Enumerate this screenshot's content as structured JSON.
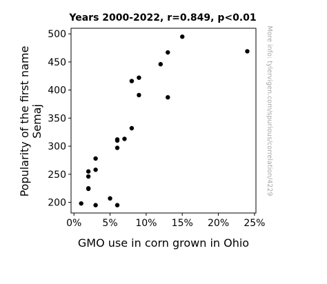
{
  "chart_data": {
    "type": "scatter",
    "title": "Years 2000-2022, r=0.849, p<0.01",
    "xlabel": "GMO use in corn grown in Ohio",
    "ylabel_line1": "Popularity of the first name",
    "ylabel_line2": "Semaj",
    "side_note": "More info: tylervigen.com/spurious/correlation/4229",
    "xlim": [
      -0.004,
      0.252
    ],
    "ylim": [
      181,
      510
    ],
    "x_ticks": [
      0,
      0.05,
      0.1,
      0.15,
      0.2,
      0.25
    ],
    "x_tick_labels": [
      "0%",
      "5%",
      "10%",
      "15%",
      "20%",
      "25%"
    ],
    "y_ticks": [
      200,
      250,
      300,
      350,
      400,
      450,
      500
    ],
    "y_tick_labels": [
      "200",
      "250",
      "300",
      "350",
      "400",
      "450",
      "500"
    ],
    "grid": false,
    "point_color": "#000000",
    "points": [
      {
        "x": 0.01,
        "y": 198
      },
      {
        "x": 0.02,
        "y": 224
      },
      {
        "x": 0.02,
        "y": 225
      },
      {
        "x": 0.02,
        "y": 246
      },
      {
        "x": 0.02,
        "y": 255
      },
      {
        "x": 0.03,
        "y": 195
      },
      {
        "x": 0.03,
        "y": 258
      },
      {
        "x": 0.03,
        "y": 278
      },
      {
        "x": 0.05,
        "y": 207
      },
      {
        "x": 0.06,
        "y": 195
      },
      {
        "x": 0.06,
        "y": 297
      },
      {
        "x": 0.06,
        "y": 310
      },
      {
        "x": 0.06,
        "y": 312
      },
      {
        "x": 0.07,
        "y": 313
      },
      {
        "x": 0.08,
        "y": 332
      },
      {
        "x": 0.08,
        "y": 416
      },
      {
        "x": 0.09,
        "y": 391
      },
      {
        "x": 0.09,
        "y": 422
      },
      {
        "x": 0.12,
        "y": 446
      },
      {
        "x": 0.13,
        "y": 387
      },
      {
        "x": 0.13,
        "y": 467
      },
      {
        "x": 0.15,
        "y": 495
      },
      {
        "x": 0.24,
        "y": 469
      }
    ]
  }
}
